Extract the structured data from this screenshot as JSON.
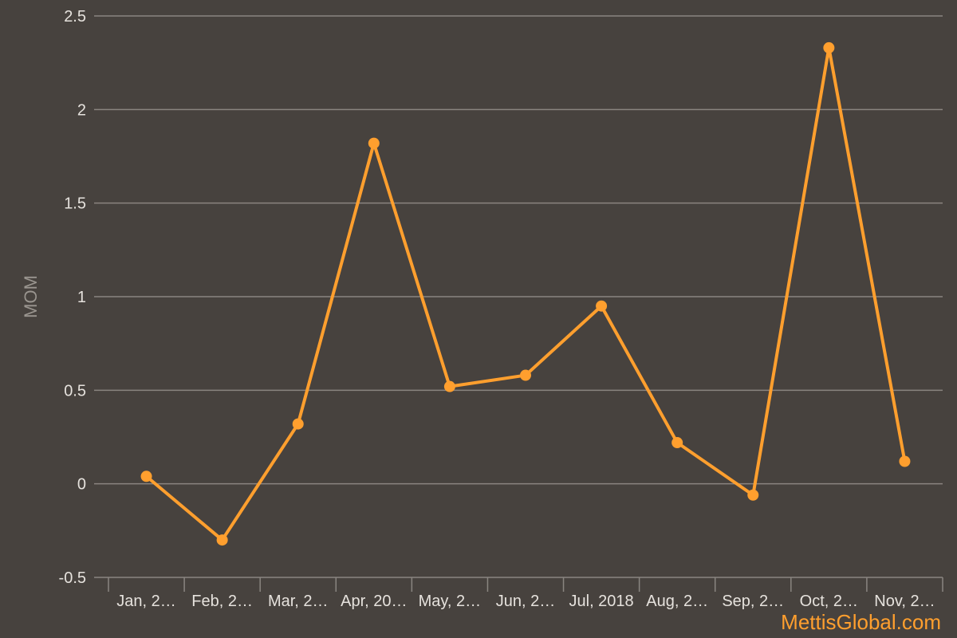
{
  "chart_data": {
    "type": "line",
    "title": "",
    "xlabel": "",
    "ylabel": "MOM",
    "ylim": [
      -0.5,
      2.5
    ],
    "yticks": [
      -0.5,
      0,
      0.5,
      1,
      1.5,
      2,
      2.5
    ],
    "ytick_labels": [
      "-0.5",
      "0",
      "0.5",
      "1",
      "1.5",
      "2",
      "2.5"
    ],
    "categories": [
      "Jan, 2…",
      "Feb, 2…",
      "Mar, 2…",
      "Apr, 20…",
      "May, 2…",
      "Jun, 2…",
      "Jul, 2018",
      "Aug, 2…",
      "Sep, 2…",
      "Oct, 2…",
      "Nov, 2…"
    ],
    "series": [
      {
        "values": [
          0.04,
          -0.3,
          0.32,
          1.82,
          0.52,
          0.58,
          0.95,
          0.22,
          -0.06,
          2.33,
          0.12
        ]
      }
    ],
    "grid": true,
    "legend": "none"
  },
  "colors": {
    "background": "#47423e",
    "series": "#ff9f2e",
    "grid": "#8a8580",
    "text": "#e6e2dd",
    "watermark": "#ff9f2e"
  },
  "watermark": "MettisGlobal.com"
}
